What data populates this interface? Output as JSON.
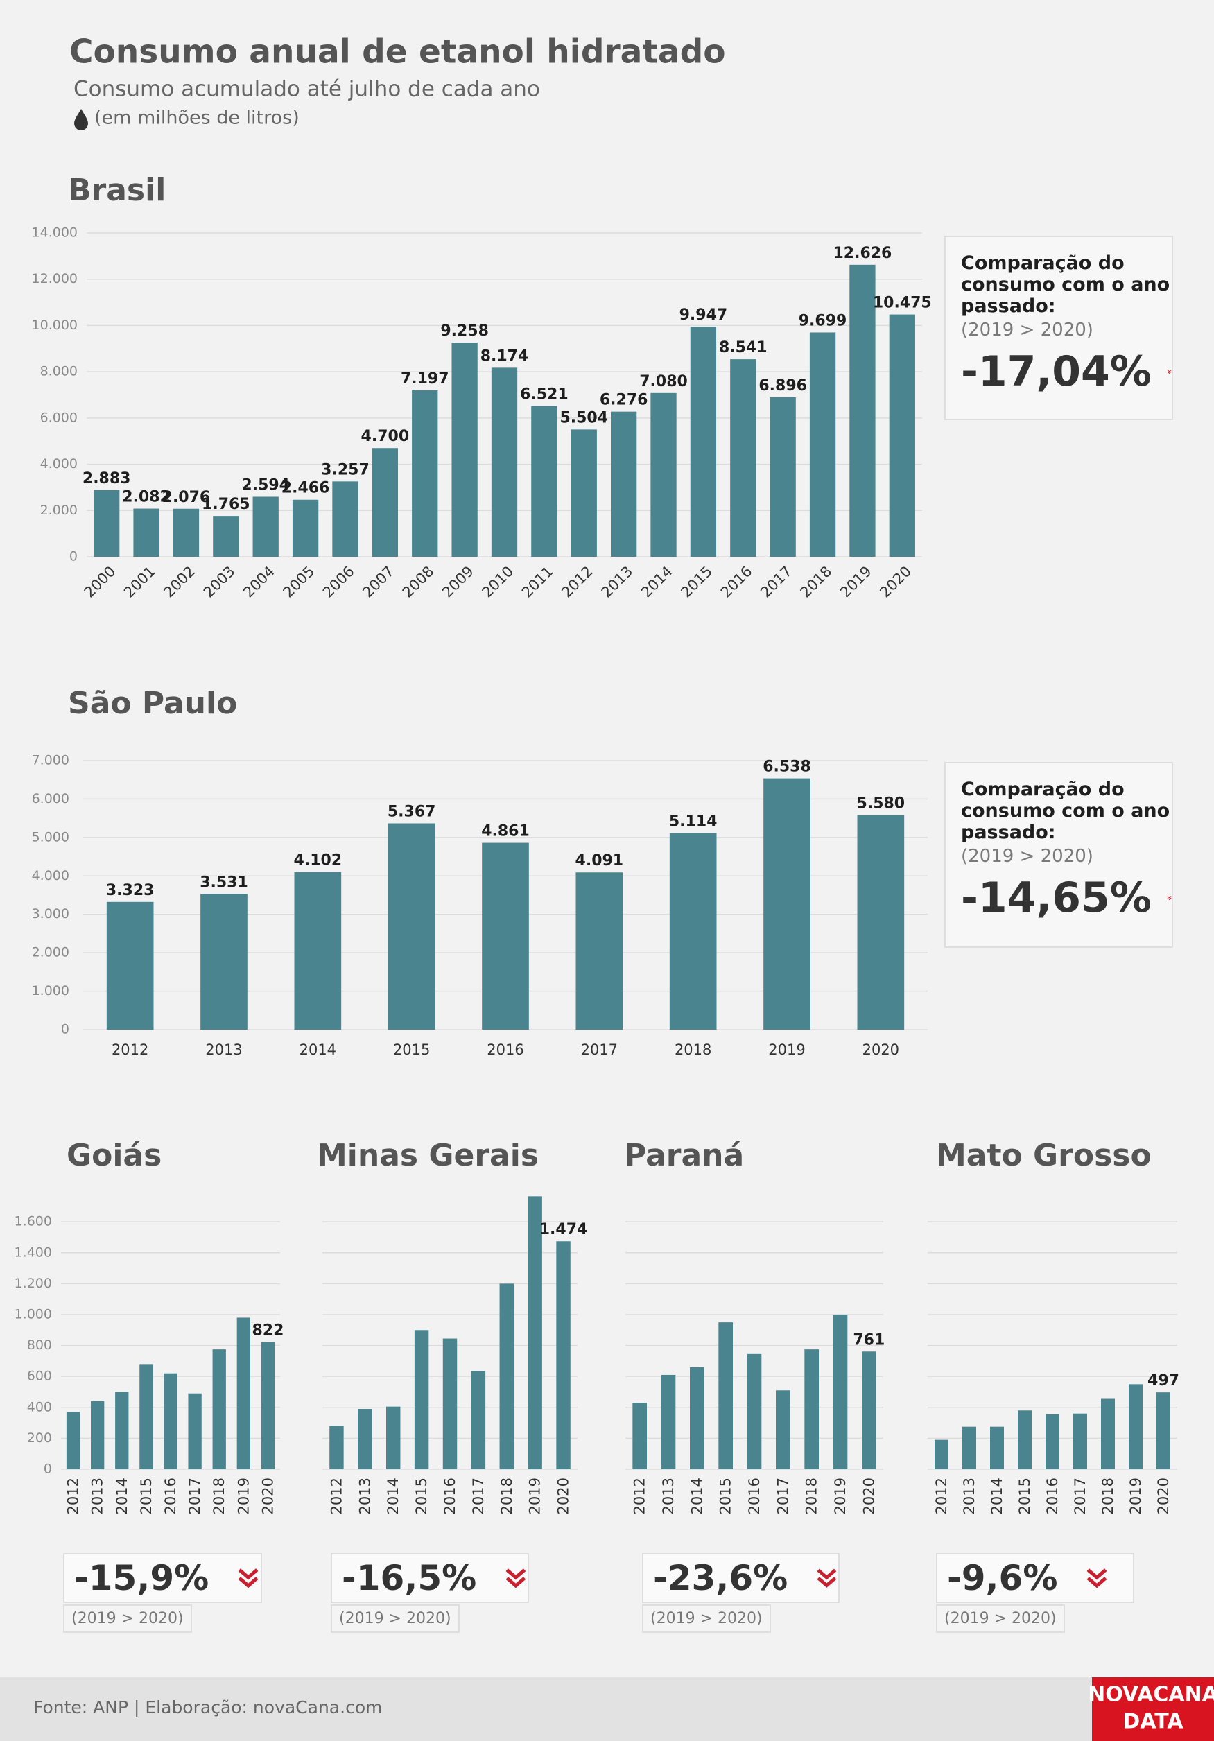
{
  "header": {
    "title": "Consumo anual de etanol hidratado",
    "subtitle": "Consumo acumulado até julho de cada ano",
    "unit": "(em milhões de litros)"
  },
  "chart_data": [
    {
      "type": "bar",
      "title": "Brasil",
      "categories": [
        "2000",
        "2001",
        "2002",
        "2003",
        "2004",
        "2005",
        "2006",
        "2007",
        "2008",
        "2009",
        "2010",
        "2011",
        "2012",
        "2013",
        "2014",
        "2015",
        "2016",
        "2017",
        "2018",
        "2019",
        "2020"
      ],
      "values": [
        2883,
        2082,
        2076,
        1765,
        2594,
        2466,
        3257,
        4700,
        7197,
        9258,
        8174,
        6521,
        5504,
        6276,
        7080,
        9947,
        8541,
        6896,
        9699,
        12626,
        10475
      ],
      "value_labels": [
        "2.883",
        "2.082",
        "2.076",
        "1.765",
        "2.594",
        "2.466",
        "3.257",
        "4.700",
        "7.197",
        "9.258",
        "8.174",
        "6.521",
        "5.504",
        "6.276",
        "7.080",
        "9.947",
        "8.541",
        "6.896",
        "9.699",
        "12.626",
        "10.475"
      ],
      "color": "#4a858f",
      "ylim": [
        0,
        14000
      ],
      "yticks": [
        0,
        {
          "value": 2000,
          "label": "2.000"
        },
        {
          "value": 4000,
          "label": "4.000"
        },
        {
          "value": 6000,
          "label": "6.000"
        },
        {
          "value": 8000,
          "label": "8.000"
        },
        {
          "value": 10000,
          "label": "10.000"
        },
        {
          "value": 12000,
          "label": "12.000"
        },
        {
          "value": 14000,
          "label": "14.000"
        }
      ],
      "grid": true,
      "x_label_rotation": -45,
      "comparison": {
        "heading": [
          "Comparação do",
          "consumo com o ano",
          "passado:"
        ],
        "period": "(2019 > 2020)",
        "change": "-17,04%"
      }
    },
    {
      "type": "bar",
      "title": "São Paulo",
      "categories": [
        "2012",
        "2013",
        "2014",
        "2015",
        "2016",
        "2017",
        "2018",
        "2019",
        "2020"
      ],
      "values": [
        3323,
        3531,
        4102,
        5367,
        4861,
        4091,
        5114,
        6538,
        5580
      ],
      "value_labels": [
        "3.323",
        "3.531",
        "4.102",
        "5.367",
        "4.861",
        "4.091",
        "5.114",
        "6.538",
        "5.580"
      ],
      "color": "#4a858f",
      "ylim": [
        0,
        7000
      ],
      "yticks": [
        0,
        {
          "value": 1000,
          "label": "1.000"
        },
        {
          "value": 2000,
          "label": "2.000"
        },
        {
          "value": 3000,
          "label": "3.000"
        },
        {
          "value": 4000,
          "label": "4.000"
        },
        {
          "value": 5000,
          "label": "5.000"
        },
        {
          "value": 6000,
          "label": "6.000"
        },
        {
          "value": 7000,
          "label": "7.000"
        }
      ],
      "grid": true,
      "x_label_rotation": 0,
      "comparison": {
        "heading": [
          "Comparação do",
          "consumo com o ano",
          "passado:"
        ],
        "period": "(2019 > 2020)",
        "change": "-14,65%"
      }
    },
    {
      "type": "bar",
      "title": "Goiás",
      "categories": [
        "2012",
        "2013",
        "2014",
        "2015",
        "2016",
        "2017",
        "2018",
        "2019",
        "2020"
      ],
      "values": [
        370,
        440,
        500,
        680,
        620,
        490,
        775,
        980,
        822
      ],
      "value_labels": [
        null,
        null,
        null,
        null,
        null,
        null,
        null,
        null,
        "822"
      ],
      "color": "#4a858f",
      "ylim": [
        0,
        1780
      ],
      "yticks": [
        0,
        200,
        400,
        600,
        800,
        {
          "value": 1000,
          "label": "1.000"
        },
        {
          "value": 1200,
          "label": "1.200"
        },
        {
          "value": 1400,
          "label": "1.400"
        },
        {
          "value": 1600,
          "label": "1.600"
        }
      ],
      "tick_labels": true,
      "grid": true,
      "x_label_rotation": -90,
      "comparison": {
        "period": "(2019 > 2020)",
        "change": "-15,9%"
      }
    },
    {
      "type": "bar",
      "title": "Minas Gerais",
      "categories": [
        "2012",
        "2013",
        "2014",
        "2015",
        "2016",
        "2017",
        "2018",
        "2019",
        "2020"
      ],
      "values": [
        280,
        390,
        405,
        900,
        845,
        635,
        1200,
        1765,
        1474
      ],
      "value_labels": [
        null,
        null,
        null,
        null,
        null,
        null,
        null,
        null,
        "1.474"
      ],
      "color": "#4a858f",
      "ylim": [
        0,
        1780
      ],
      "yticks": [
        0,
        200,
        400,
        600,
        800,
        1000,
        1200,
        1400,
        1600
      ],
      "tick_labels": false,
      "grid": true,
      "x_label_rotation": -90,
      "comparison": {
        "period": "(2019 > 2020)",
        "change": "-16,5%"
      }
    },
    {
      "type": "bar",
      "title": "Paraná",
      "categories": [
        "2012",
        "2013",
        "2014",
        "2015",
        "2016",
        "2017",
        "2018",
        "2019",
        "2020"
      ],
      "values": [
        430,
        610,
        660,
        950,
        745,
        510,
        775,
        1000,
        761
      ],
      "value_labels": [
        null,
        null,
        null,
        null,
        null,
        null,
        null,
        null,
        "761"
      ],
      "color": "#4a858f",
      "ylim": [
        0,
        1780
      ],
      "yticks": [
        0,
        200,
        400,
        600,
        800,
        1000,
        1200,
        1400,
        1600
      ],
      "tick_labels": false,
      "grid": true,
      "x_label_rotation": -90,
      "comparison": {
        "period": "(2019 > 2020)",
        "change": "-23,6%"
      }
    },
    {
      "type": "bar",
      "title": "Mato Grosso",
      "categories": [
        "2012",
        "2013",
        "2014",
        "2015",
        "2016",
        "2017",
        "2018",
        "2019",
        "2020"
      ],
      "values": [
        190,
        275,
        275,
        380,
        355,
        360,
        455,
        550,
        497
      ],
      "value_labels": [
        null,
        null,
        null,
        null,
        null,
        null,
        null,
        null,
        "497"
      ],
      "color": "#4a858f",
      "ylim": [
        0,
        1780
      ],
      "yticks": [
        0,
        200,
        400,
        600,
        800,
        1000,
        1200,
        1400,
        1600
      ],
      "tick_labels": false,
      "grid": true,
      "x_label_rotation": -90,
      "comparison": {
        "period": "(2019 > 2020)",
        "change": "-9,6%"
      }
    }
  ],
  "footer": {
    "source": "Fonte: ANP | Elaboração: novaCana.com",
    "logo": [
      "NOVACANA",
      "DATA"
    ]
  }
}
